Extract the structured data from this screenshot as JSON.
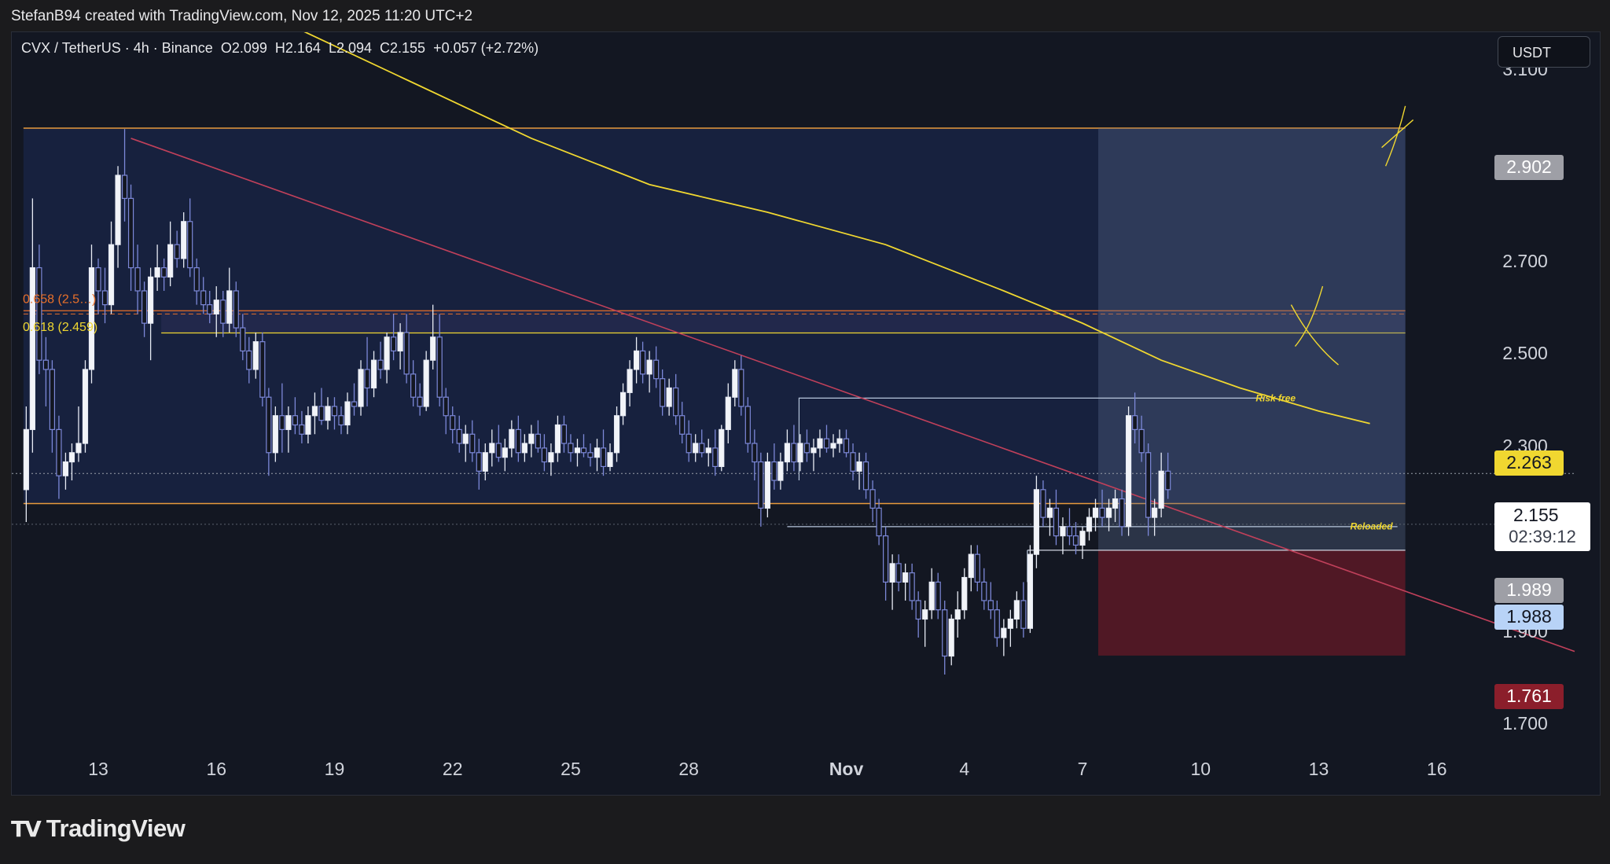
{
  "header": {
    "attribution": "StefanB94 created with TradingView.com, Nov 12, 2025 11:20 UTC+2"
  },
  "legend": {
    "symbol": "CVX / TetherUS · 4h · Binance",
    "open": "O2.099",
    "high": "H2.164",
    "low": "L2.094",
    "close": "C2.155",
    "change": "+0.057 (+2.72%)"
  },
  "currency_button": "USDT",
  "footer": {
    "brand": "TradingView"
  },
  "chart_data": {
    "type": "candlestick",
    "title": "CVX / TetherUS · 4h · Binance",
    "y_axis": {
      "min": 1.62,
      "max": 3.16,
      "ticks": [
        3.1,
        2.7,
        2.5,
        2.3,
        1.9,
        1.7
      ],
      "tick_labels": [
        "3.100",
        "2.700",
        "2.500",
        "2.300",
        "1.900",
        "1.700"
      ]
    },
    "x_axis": {
      "start_day": 11,
      "end_day": 17.2,
      "ticks": [
        {
          "label": "13",
          "day": 13
        },
        {
          "label": "16",
          "day": 16
        },
        {
          "label": "19",
          "day": 19
        },
        {
          "label": "22",
          "day": 22
        },
        {
          "label": "25",
          "day": 25
        },
        {
          "label": "28",
          "day": 28
        },
        {
          "label": "Nov",
          "day": 32,
          "bold": true
        },
        {
          "label": "4",
          "day": 35
        },
        {
          "label": "7",
          "day": 38
        },
        {
          "label": "10",
          "day": 41
        },
        {
          "label": "13",
          "day": 44
        },
        {
          "label": "16",
          "day": 47
        }
      ]
    },
    "price_badges": [
      {
        "value": "2.902",
        "bg": "#9e9fa6",
        "fg": "#ffffff"
      },
      {
        "value": "2.263",
        "bg": "#f0d730",
        "fg": "#131722"
      },
      {
        "value": "1.989",
        "bg": "#9e9fa6",
        "fg": "#ffffff"
      },
      {
        "value": "1.988",
        "bg": "#b8d3f7",
        "fg": "#131722"
      },
      {
        "value": "1.761",
        "bg": "#8b1e2b",
        "fg": "#ffffff"
      }
    ],
    "last_price": {
      "value": "2.155",
      "countdown": "02:39:12"
    },
    "fib_labels": [
      {
        "text": "0.658 (2.5…)",
        "price": 2.507,
        "color": "#e8702a"
      },
      {
        "text": "0.618 (2.459)",
        "price": 2.48,
        "color": "#f0d730"
      }
    ],
    "annotations": [
      {
        "text": "Risk free",
        "price": 2.318,
        "color": "#f0d730"
      },
      {
        "text": "Reloaded",
        "price": 2.041,
        "color": "#f0d730"
      }
    ],
    "zones": {
      "range_box": {
        "top": 2.902,
        "bottom": 2.09,
        "start_day": 11.1,
        "end_day": 46.2
      },
      "fib_band": {
        "top": 2.507,
        "bottom": 2.459
      },
      "profit": {
        "top": 2.902,
        "bottom": 1.989,
        "start_day": 38.4,
        "end_day": 46.2
      },
      "stop": {
        "top": 1.989,
        "bottom": 1.761,
        "start_day": 38.4,
        "end_day": 46.2
      }
    },
    "candles": [
      [
        11.17,
        2.12,
        2.3,
        2.05,
        2.25
      ],
      [
        11.33,
        2.25,
        2.75,
        2.2,
        2.6
      ],
      [
        11.5,
        2.6,
        2.65,
        2.37,
        2.4
      ],
      [
        11.67,
        2.4,
        2.45,
        2.3,
        2.38
      ],
      [
        11.83,
        2.38,
        2.4,
        2.2,
        2.25
      ],
      [
        12,
        2.25,
        2.28,
        2.1,
        2.15
      ],
      [
        12.17,
        2.15,
        2.2,
        2.12,
        2.18
      ],
      [
        12.33,
        2.18,
        2.22,
        2.14,
        2.2
      ],
      [
        12.5,
        2.2,
        2.3,
        2.18,
        2.22
      ],
      [
        12.67,
        2.22,
        2.4,
        2.2,
        2.38
      ],
      [
        12.83,
        2.38,
        2.65,
        2.35,
        2.6
      ],
      [
        13,
        2.6,
        2.62,
        2.5,
        2.55
      ],
      [
        13.17,
        2.55,
        2.6,
        2.48,
        2.52
      ],
      [
        13.33,
        2.52,
        2.7,
        2.5,
        2.65
      ],
      [
        13.5,
        2.65,
        2.82,
        2.6,
        2.8
      ],
      [
        13.67,
        2.8,
        2.9,
        2.7,
        2.75
      ],
      [
        13.83,
        2.75,
        2.78,
        2.55,
        2.6
      ],
      [
        14,
        2.6,
        2.65,
        2.5,
        2.55
      ],
      [
        14.17,
        2.55,
        2.57,
        2.45,
        2.48
      ],
      [
        14.33,
        2.48,
        2.6,
        2.4,
        2.58
      ],
      [
        14.5,
        2.58,
        2.65,
        2.55,
        2.6
      ],
      [
        14.67,
        2.6,
        2.62,
        2.55,
        2.58
      ],
      [
        14.83,
        2.58,
        2.7,
        2.56,
        2.65
      ],
      [
        15,
        2.65,
        2.68,
        2.6,
        2.62
      ],
      [
        15.17,
        2.62,
        2.72,
        2.6,
        2.7
      ],
      [
        15.33,
        2.7,
        2.75,
        2.58,
        2.6
      ],
      [
        15.5,
        2.6,
        2.62,
        2.52,
        2.55
      ],
      [
        15.67,
        2.55,
        2.58,
        2.5,
        2.52
      ],
      [
        15.83,
        2.52,
        2.55,
        2.48,
        2.5
      ],
      [
        16,
        2.5,
        2.56,
        2.45,
        2.53
      ],
      [
        16.17,
        2.53,
        2.55,
        2.45,
        2.48
      ],
      [
        16.33,
        2.48,
        2.6,
        2.46,
        2.55
      ],
      [
        16.5,
        2.55,
        2.57,
        2.45,
        2.47
      ],
      [
        16.67,
        2.47,
        2.5,
        2.4,
        2.42
      ],
      [
        16.83,
        2.42,
        2.45,
        2.35,
        2.38
      ],
      [
        17,
        2.38,
        2.46,
        2.36,
        2.44
      ],
      [
        17.17,
        2.44,
        2.46,
        2.3,
        2.32
      ],
      [
        17.33,
        2.32,
        2.34,
        2.15,
        2.2
      ],
      [
        17.5,
        2.2,
        2.3,
        2.18,
        2.28
      ],
      [
        17.67,
        2.28,
        2.35,
        2.2,
        2.25
      ],
      [
        17.83,
        2.25,
        2.3,
        2.2,
        2.28
      ],
      [
        18,
        2.28,
        2.32,
        2.24,
        2.26
      ],
      [
        18.17,
        2.26,
        2.29,
        2.22,
        2.24
      ],
      [
        18.33,
        2.24,
        2.3,
        2.22,
        2.28
      ],
      [
        18.5,
        2.28,
        2.33,
        2.24,
        2.3
      ],
      [
        18.67,
        2.3,
        2.34,
        2.26,
        2.27
      ],
      [
        18.83,
        2.27,
        2.32,
        2.25,
        2.3
      ],
      [
        19,
        2.3,
        2.32,
        2.25,
        2.28
      ],
      [
        19.17,
        2.28,
        2.3,
        2.24,
        2.26
      ],
      [
        19.33,
        2.26,
        2.33,
        2.24,
        2.31
      ],
      [
        19.5,
        2.31,
        2.35,
        2.28,
        2.3
      ],
      [
        19.67,
        2.3,
        2.4,
        2.28,
        2.38
      ],
      [
        19.83,
        2.38,
        2.45,
        2.3,
        2.34
      ],
      [
        20,
        2.34,
        2.42,
        2.32,
        2.4
      ],
      [
        20.17,
        2.4,
        2.44,
        2.36,
        2.38
      ],
      [
        20.33,
        2.38,
        2.46,
        2.35,
        2.45
      ],
      [
        20.5,
        2.45,
        2.5,
        2.4,
        2.42
      ],
      [
        20.67,
        2.42,
        2.48,
        2.38,
        2.46
      ],
      [
        20.83,
        2.46,
        2.5,
        2.35,
        2.37
      ],
      [
        21,
        2.37,
        2.4,
        2.3,
        2.32
      ],
      [
        21.17,
        2.32,
        2.35,
        2.28,
        2.3
      ],
      [
        21.33,
        2.3,
        2.42,
        2.29,
        2.4
      ],
      [
        21.5,
        2.4,
        2.52,
        2.38,
        2.45
      ],
      [
        21.67,
        2.45,
        2.5,
        2.3,
        2.32
      ],
      [
        21.83,
        2.32,
        2.34,
        2.24,
        2.28
      ],
      [
        22,
        2.28,
        2.3,
        2.22,
        2.25
      ],
      [
        22.17,
        2.25,
        2.28,
        2.2,
        2.22
      ],
      [
        22.33,
        2.22,
        2.26,
        2.18,
        2.24
      ],
      [
        22.5,
        2.24,
        2.27,
        2.18,
        2.2
      ],
      [
        22.67,
        2.2,
        2.23,
        2.12,
        2.16
      ],
      [
        22.83,
        2.16,
        2.22,
        2.14,
        2.2
      ],
      [
        23,
        2.2,
        2.25,
        2.17,
        2.22
      ],
      [
        23.17,
        2.22,
        2.26,
        2.18,
        2.19
      ],
      [
        23.33,
        2.19,
        2.23,
        2.16,
        2.21
      ],
      [
        23.5,
        2.21,
        2.27,
        2.19,
        2.25
      ],
      [
        23.67,
        2.25,
        2.28,
        2.18,
        2.2
      ],
      [
        23.83,
        2.2,
        2.24,
        2.18,
        2.22
      ],
      [
        24,
        2.22,
        2.26,
        2.19,
        2.24
      ],
      [
        24.17,
        2.24,
        2.27,
        2.2,
        2.21
      ],
      [
        24.33,
        2.21,
        2.24,
        2.16,
        2.18
      ],
      [
        24.5,
        2.18,
        2.22,
        2.15,
        2.2
      ],
      [
        24.67,
        2.2,
        2.28,
        2.18,
        2.26
      ],
      [
        24.83,
        2.26,
        2.28,
        2.2,
        2.22
      ],
      [
        25,
        2.22,
        2.24,
        2.18,
        2.2
      ],
      [
        25.17,
        2.2,
        2.23,
        2.17,
        2.21
      ],
      [
        25.33,
        2.21,
        2.24,
        2.19,
        2.2
      ],
      [
        25.5,
        2.2,
        2.22,
        2.17,
        2.19
      ],
      [
        25.67,
        2.19,
        2.23,
        2.16,
        2.21
      ],
      [
        25.83,
        2.21,
        2.25,
        2.15,
        2.17
      ],
      [
        26,
        2.17,
        2.22,
        2.16,
        2.2
      ],
      [
        26.17,
        2.2,
        2.3,
        2.18,
        2.28
      ],
      [
        26.33,
        2.28,
        2.35,
        2.26,
        2.33
      ],
      [
        26.5,
        2.33,
        2.4,
        2.3,
        2.38
      ],
      [
        26.67,
        2.38,
        2.45,
        2.35,
        2.42
      ],
      [
        26.83,
        2.42,
        2.44,
        2.35,
        2.37
      ],
      [
        27,
        2.37,
        2.42,
        2.33,
        2.4
      ],
      [
        27.17,
        2.4,
        2.43,
        2.34,
        2.36
      ],
      [
        27.33,
        2.36,
        2.38,
        2.28,
        2.3
      ],
      [
        27.5,
        2.3,
        2.36,
        2.28,
        2.34
      ],
      [
        27.67,
        2.34,
        2.37,
        2.26,
        2.28
      ],
      [
        27.83,
        2.28,
        2.31,
        2.22,
        2.24
      ],
      [
        28,
        2.24,
        2.27,
        2.18,
        2.2
      ],
      [
        28.17,
        2.2,
        2.24,
        2.18,
        2.22
      ],
      [
        28.33,
        2.22,
        2.25,
        2.19,
        2.2
      ],
      [
        28.5,
        2.2,
        2.23,
        2.17,
        2.21
      ],
      [
        28.67,
        2.21,
        2.25,
        2.15,
        2.17
      ],
      [
        28.83,
        2.17,
        2.26,
        2.16,
        2.25
      ],
      [
        29,
        2.25,
        2.35,
        2.22,
        2.32
      ],
      [
        29.17,
        2.32,
        2.4,
        2.3,
        2.38
      ],
      [
        29.33,
        2.38,
        2.41,
        2.28,
        2.3
      ],
      [
        29.5,
        2.3,
        2.32,
        2.2,
        2.22
      ],
      [
        29.67,
        2.22,
        2.25,
        2.14,
        2.18
      ],
      [
        29.83,
        2.18,
        2.2,
        2.04,
        2.08
      ],
      [
        30,
        2.08,
        2.2,
        2.06,
        2.18
      ],
      [
        30.17,
        2.18,
        2.22,
        2.12,
        2.14
      ],
      [
        30.33,
        2.14,
        2.2,
        2.12,
        2.18
      ],
      [
        30.5,
        2.18,
        2.25,
        2.16,
        2.22
      ],
      [
        30.67,
        2.22,
        2.26,
        2.16,
        2.18
      ],
      [
        30.83,
        2.18,
        2.24,
        2.16,
        2.22
      ],
      [
        31,
        2.22,
        2.25,
        2.18,
        2.2
      ],
      [
        31.17,
        2.2,
        2.23,
        2.16,
        2.21
      ],
      [
        31.33,
        2.21,
        2.25,
        2.19,
        2.23
      ],
      [
        31.5,
        2.23,
        2.26,
        2.2,
        2.21
      ],
      [
        31.67,
        2.21,
        2.24,
        2.19,
        2.22
      ],
      [
        31.83,
        2.22,
        2.25,
        2.2,
        2.23
      ],
      [
        32,
        2.23,
        2.25,
        2.19,
        2.2
      ],
      [
        32.17,
        2.2,
        2.22,
        2.14,
        2.16
      ],
      [
        32.33,
        2.16,
        2.2,
        2.12,
        2.18
      ],
      [
        32.5,
        2.18,
        2.2,
        2.1,
        2.12
      ],
      [
        32.67,
        2.12,
        2.14,
        2.05,
        2.08
      ],
      [
        32.83,
        2.08,
        2.1,
        2.0,
        2.02
      ],
      [
        33,
        2.02,
        2.04,
        1.88,
        1.92
      ],
      [
        33.17,
        1.92,
        1.98,
        1.86,
        1.96
      ],
      [
        33.33,
        1.96,
        1.98,
        1.9,
        1.92
      ],
      [
        33.5,
        1.92,
        1.96,
        1.88,
        1.94
      ],
      [
        33.67,
        1.94,
        1.96,
        1.86,
        1.88
      ],
      [
        33.83,
        1.88,
        1.9,
        1.8,
        1.84
      ],
      [
        34,
        1.84,
        1.88,
        1.78,
        1.86
      ],
      [
        34.17,
        1.86,
        1.95,
        1.84,
        1.92
      ],
      [
        34.33,
        1.92,
        1.94,
        1.84,
        1.86
      ],
      [
        34.5,
        1.86,
        1.88,
        1.72,
        1.76
      ],
      [
        34.67,
        1.76,
        1.85,
        1.74,
        1.84
      ],
      [
        34.83,
        1.84,
        1.9,
        1.8,
        1.86
      ],
      [
        35,
        1.86,
        1.95,
        1.84,
        1.93
      ],
      [
        35.17,
        1.93,
        2.0,
        1.9,
        1.98
      ],
      [
        35.33,
        1.98,
        2.0,
        1.9,
        1.92
      ],
      [
        35.5,
        1.92,
        1.95,
        1.86,
        1.88
      ],
      [
        35.67,
        1.88,
        1.92,
        1.84,
        1.86
      ],
      [
        35.83,
        1.86,
        1.88,
        1.78,
        1.8
      ],
      [
        36,
        1.8,
        1.84,
        1.76,
        1.82
      ],
      [
        36.17,
        1.82,
        1.86,
        1.78,
        1.84
      ],
      [
        36.33,
        1.84,
        1.9,
        1.82,
        1.88
      ],
      [
        36.5,
        1.88,
        1.92,
        1.8,
        1.82
      ],
      [
        36.67,
        1.82,
        2.0,
        1.81,
        1.98
      ],
      [
        36.83,
        1.98,
        2.15,
        1.95,
        2.12
      ],
      [
        37,
        2.12,
        2.14,
        2.04,
        2.06
      ],
      [
        37.17,
        2.06,
        2.1,
        2.02,
        2.08
      ],
      [
        37.33,
        2.08,
        2.12,
        2.0,
        2.02
      ],
      [
        37.5,
        2.02,
        2.06,
        1.98,
        2.04
      ],
      [
        37.67,
        2.04,
        2.08,
        2.0,
        2.02
      ],
      [
        37.83,
        2.02,
        2.05,
        1.98,
        2.0
      ],
      [
        38,
        2.0,
        2.04,
        1.97,
        2.03
      ],
      [
        38.17,
        2.03,
        2.08,
        2.01,
        2.06
      ],
      [
        38.33,
        2.06,
        2.1,
        2.03,
        2.08
      ],
      [
        38.5,
        2.08,
        2.12,
        2.04,
        2.06
      ],
      [
        38.67,
        2.06,
        2.1,
        2.03,
        2.08
      ],
      [
        38.83,
        2.08,
        2.12,
        2.05,
        2.1
      ],
      [
        39,
        2.1,
        2.12,
        2.02,
        2.04
      ],
      [
        39.17,
        2.04,
        2.3,
        2.02,
        2.28
      ],
      [
        39.33,
        2.28,
        2.33,
        2.22,
        2.25
      ],
      [
        39.5,
        2.25,
        2.28,
        2.18,
        2.2
      ],
      [
        39.67,
        2.2,
        2.22,
        2.02,
        2.06
      ],
      [
        39.83,
        2.06,
        2.1,
        2.02,
        2.08
      ],
      [
        40,
        2.08,
        2.2,
        2.06,
        2.16
      ],
      [
        40.17,
        2.16,
        2.2,
        2.1,
        2.12
      ]
    ],
    "ema_curve": [
      [
        16.5,
        3.16
      ],
      [
        18,
        3.12
      ],
      [
        21,
        3.0
      ],
      [
        24,
        2.88
      ],
      [
        27,
        2.78
      ],
      [
        30,
        2.72
      ],
      [
        33,
        2.65
      ],
      [
        36,
        2.55
      ],
      [
        38,
        2.48
      ],
      [
        40,
        2.4
      ],
      [
        42,
        2.34
      ],
      [
        44,
        2.29
      ],
      [
        45.3,
        2.263
      ]
    ],
    "trendline": {
      "start": [
        13.83,
        2.88
      ],
      "end": [
        50.5,
        1.77
      ]
    }
  }
}
